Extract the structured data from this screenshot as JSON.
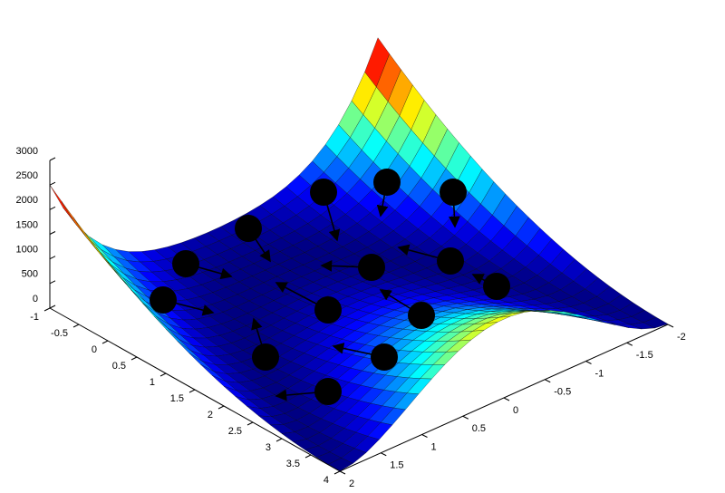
{
  "chart_data": {
    "type": "surface",
    "xlim": [
      -1,
      4
    ],
    "ylim": [
      -2,
      2
    ],
    "zlim": [
      0,
      3000
    ],
    "xticks": [
      -1,
      -0.5,
      0,
      0.5,
      1,
      1.5,
      2,
      2.5,
      3,
      3.5,
      4
    ],
    "yticks": [
      -2,
      -1.5,
      -1,
      -0.5,
      0,
      0.5,
      1,
      1.5,
      2
    ],
    "zticks": [
      0,
      500,
      1000,
      1500,
      2000,
      2500,
      3000
    ]
  }
}
